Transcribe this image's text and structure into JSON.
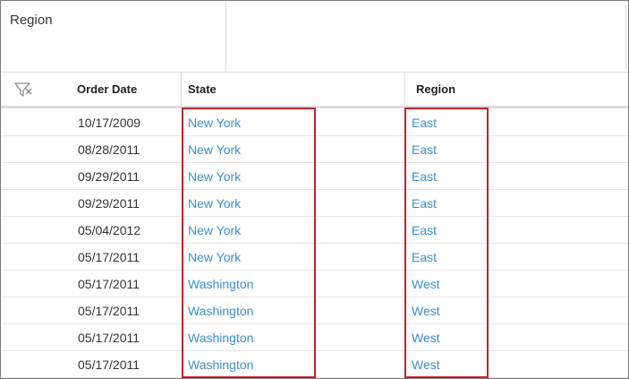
{
  "filter_panel": {
    "title": "Region"
  },
  "grid": {
    "columns": {
      "filter_icon": "filter-icon",
      "order_date": "Order Date",
      "state": "State",
      "region": "Region"
    },
    "rows": [
      {
        "order_date": "10/17/2009",
        "state": "New York",
        "region": "East"
      },
      {
        "order_date": "08/28/2011",
        "state": "New York",
        "region": "East"
      },
      {
        "order_date": "09/29/2011",
        "state": "New York",
        "region": "East"
      },
      {
        "order_date": "09/29/2011",
        "state": "New York",
        "region": "East"
      },
      {
        "order_date": "05/04/2012",
        "state": "New York",
        "region": "East"
      },
      {
        "order_date": "05/17/2011",
        "state": "New York",
        "region": "East"
      },
      {
        "order_date": "05/17/2011",
        "state": "Washington",
        "region": "West"
      },
      {
        "order_date": "05/17/2011",
        "state": "Washington",
        "region": "West"
      },
      {
        "order_date": "05/17/2011",
        "state": "Washington",
        "region": "West"
      },
      {
        "order_date": "05/17/2011",
        "state": "Washington",
        "region": "West"
      }
    ]
  },
  "colors": {
    "link": "#3c8fd0",
    "highlight": "#c8202a",
    "grid_line": "#dcdcdc"
  }
}
